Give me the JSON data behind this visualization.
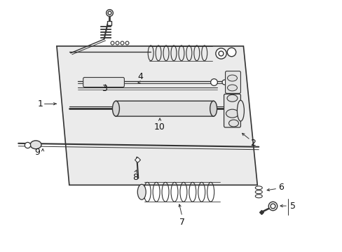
{
  "bg_color": "#ffffff",
  "fig_width": 4.89,
  "fig_height": 3.6,
  "dpi": 100,
  "line_color": "#333333",
  "panel_fill": "#ebebeb",
  "panel_edge": "#333333"
}
